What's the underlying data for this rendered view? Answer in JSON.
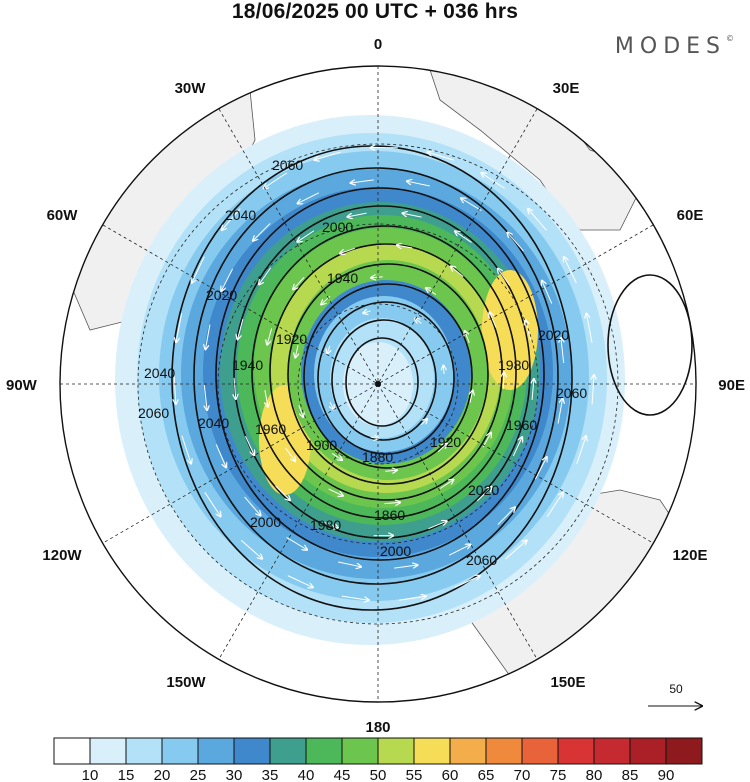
{
  "title": "18/06/2025  00 UTC  + 036 hrs",
  "brand": {
    "name": "MODES",
    "mark": "©"
  },
  "map": {
    "projection": "polar stereographic, South Pole centered",
    "meridian_labels": {
      "top": "0",
      "bottom": "180",
      "left": "90W",
      "right": "90E",
      "upper_left": [
        "30W",
        "60W"
      ],
      "upper_right": [
        "30E",
        "60E"
      ],
      "lower_left": [
        "120W",
        "150W"
      ],
      "lower_right": [
        "120E",
        "150E"
      ]
    },
    "contour_labels": [
      "2060",
      "2040",
      "2020",
      "2000",
      "1980",
      "1960",
      "1940",
      "1920",
      "1900",
      "1880",
      "1860",
      "1920",
      "1940",
      "1960",
      "1980",
      "2000",
      "2020",
      "2040",
      "2060",
      "2060",
      "2060",
      "2040",
      "2020",
      "2000",
      "1980",
      "1960",
      "1920",
      "1880",
      "1900",
      "2020",
      "2040",
      "2060",
      "2060"
    ],
    "reference_vector": "50",
    "colors": {
      "land": "#f0f0f0",
      "coast": "#555555",
      "contour": "#111111",
      "wind_arrow": "#ffffff"
    }
  },
  "colorbar": {
    "ticks": [
      "10",
      "15",
      "20",
      "25",
      "30",
      "35",
      "40",
      "45",
      "50",
      "55",
      "60",
      "65",
      "70",
      "75",
      "80",
      "85",
      "90"
    ],
    "colors": [
      "#ffffff",
      "#d9f0fb",
      "#b3e1f7",
      "#86cbef",
      "#5aa8de",
      "#3f88cc",
      "#3f9f8f",
      "#4cb85a",
      "#6cc64e",
      "#b6d950",
      "#f6dd58",
      "#f3ae4b",
      "#ef8a3d",
      "#e9633a",
      "#d93434",
      "#c42a2f",
      "#ab2027",
      "#8f1a1e"
    ]
  }
}
